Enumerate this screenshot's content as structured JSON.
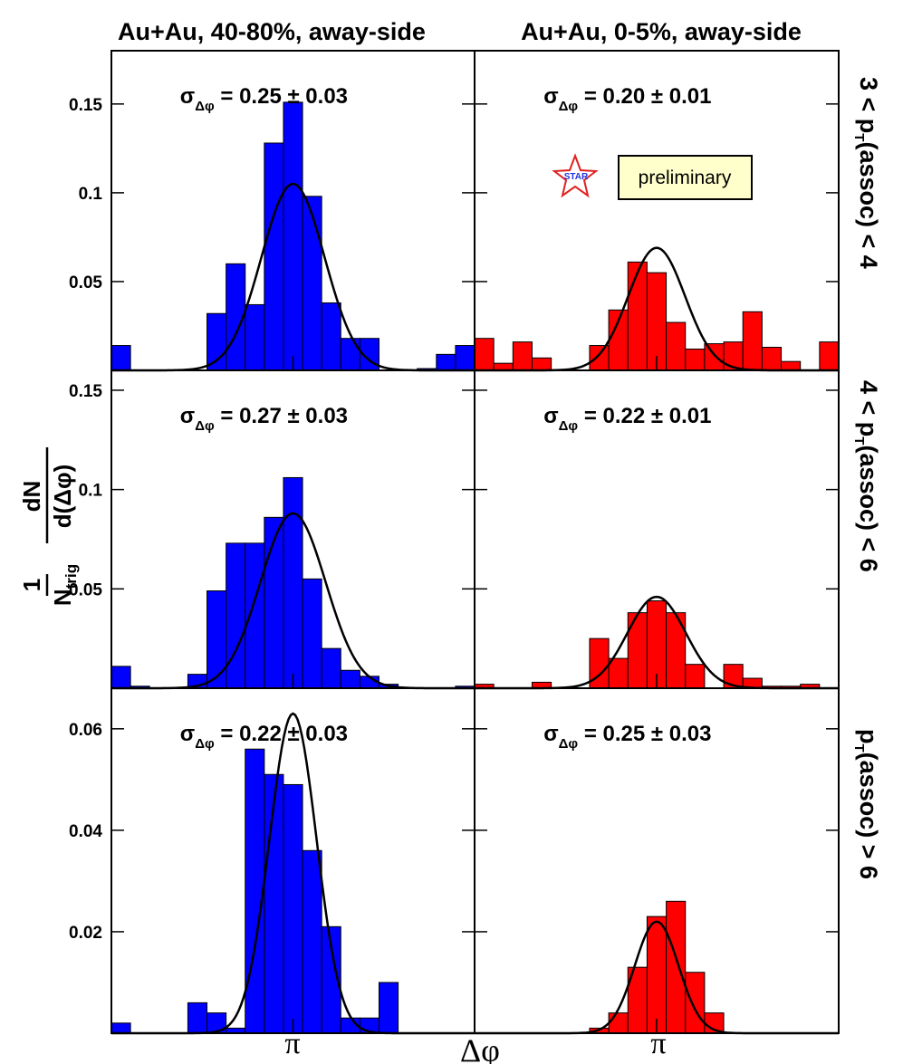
{
  "colors": {
    "blue": "#0000ff",
    "red": "#ff0000",
    "frame": "#000000",
    "prelim_bg": "#ffffcc",
    "star_outline": "#e02020",
    "star_text": "#2233dd"
  },
  "figure": {
    "col_titles": [
      "Au+Au, 40-80%, away-side",
      "Au+Au, 0-5%, away-side"
    ],
    "row_labels": [
      "3 < p",
      "4 < p",
      "p"
    ],
    "row_label_sub": "T",
    "row_label_tails": [
      "(assoc) < 4",
      "(assoc) < 6",
      "(assoc) > 6"
    ],
    "xlabel": "Δφ",
    "xtick_label": "π",
    "ylabel": {
      "num_top": "1",
      "den_top": "N",
      "den_top_sub": "trig",
      "num_bottom": "dN",
      "den_bottom": "d(Δφ)"
    },
    "sigma_symbol": "σ",
    "sigma_sub": "Δφ",
    "pm": "±",
    "star_logo_text": "STAR",
    "preliminary": "preliminary"
  },
  "chart_data": [
    {
      "type": "bar",
      "row": 0,
      "col": 0,
      "color": "blue",
      "ylim": [
        0,
        0.18
      ],
      "yticks": [
        0.05,
        0.1,
        0.15
      ],
      "ytick_labels": [
        "0.05",
        "0.1",
        "0.15"
      ],
      "bins": 19,
      "values": [
        0.014,
        0,
        0,
        0,
        0,
        0.032,
        0.06,
        0.037,
        0.128,
        0.151,
        0.098,
        0.038,
        0.018,
        0.018,
        0,
        0,
        0.001,
        0.009,
        0.014
      ],
      "fit": {
        "mu": 0.5,
        "sigma": 0.087,
        "amp": 0.105
      },
      "sigma_value": "0.25",
      "sigma_err": "0.03"
    },
    {
      "type": "bar",
      "row": 0,
      "col": 1,
      "color": "red",
      "ylim": [
        0,
        0.18
      ],
      "yticks": [
        0.05,
        0.1,
        0.15
      ],
      "ytick_labels": [
        "0.05",
        "0.1",
        "0.15"
      ],
      "bins": 19,
      "values": [
        0.018,
        0.004,
        0.016,
        0.007,
        0,
        0,
        0.014,
        0.034,
        0.061,
        0.055,
        0.027,
        0.012,
        0.015,
        0.016,
        0.033,
        0.013,
        0.005,
        0,
        0.016
      ],
      "fit": {
        "mu": 0.5,
        "sigma": 0.078,
        "amp": 0.069
      },
      "sigma_value": "0.20",
      "sigma_err": "0.01"
    },
    {
      "type": "bar",
      "row": 1,
      "col": 0,
      "color": "blue",
      "ylim": [
        0,
        0.16
      ],
      "yticks": [
        0.05,
        0.1,
        0.15
      ],
      "ytick_labels": [
        "0.05",
        "0.1",
        "0.15"
      ],
      "bins": 19,
      "values": [
        0.011,
        0.001,
        0,
        0,
        0.007,
        0.049,
        0.073,
        0.073,
        0.086,
        0.106,
        0.055,
        0.02,
        0.009,
        0.006,
        0.002,
        0,
        0,
        0,
        0.001
      ],
      "fit": {
        "mu": 0.5,
        "sigma": 0.09,
        "amp": 0.088
      },
      "sigma_value": "0.27",
      "sigma_err": "0.03"
    },
    {
      "type": "bar",
      "row": 1,
      "col": 1,
      "color": "red",
      "ylim": [
        0,
        0.16
      ],
      "yticks": [
        0.05,
        0.1,
        0.15
      ],
      "ytick_labels": [
        "0.05",
        "0.1",
        "0.15"
      ],
      "bins": 19,
      "values": [
        0.002,
        0,
        0,
        0.003,
        0,
        0,
        0.025,
        0.015,
        0.038,
        0.044,
        0.038,
        0.012,
        0,
        0.012,
        0.005,
        0.001,
        0.001,
        0.002,
        0
      ],
      "fit": {
        "mu": 0.5,
        "sigma": 0.08,
        "amp": 0.046
      },
      "sigma_value": "0.22",
      "sigma_err": "0.01"
    },
    {
      "type": "bar",
      "row": 2,
      "col": 0,
      "color": "blue",
      "ylim": [
        0,
        0.068
      ],
      "yticks": [
        0.02,
        0.04,
        0.06
      ],
      "ytick_labels": [
        "0.02",
        "0.04",
        "0.06"
      ],
      "bins": 19,
      "values": [
        0.002,
        0,
        0,
        0,
        0.006,
        0.004,
        0.001,
        0.056,
        0.051,
        0.049,
        0.036,
        0.021,
        0.003,
        0.003,
        0.01,
        0,
        0,
        0,
        0
      ],
      "fit": {
        "mu": 0.5,
        "sigma": 0.065,
        "amp": 0.063
      },
      "sigma_value": "0.22",
      "sigma_err": "0.03"
    },
    {
      "type": "bar",
      "row": 2,
      "col": 1,
      "color": "red",
      "ylim": [
        0,
        0.068
      ],
      "yticks": [
        0.02,
        0.04,
        0.06
      ],
      "ytick_labels": [
        "0.02",
        "0.04",
        "0.06"
      ],
      "bins": 19,
      "values": [
        0,
        0,
        0,
        0,
        0,
        0,
        0.001,
        0.004,
        0.013,
        0.023,
        0.026,
        0.012,
        0.004,
        0,
        0,
        0,
        0,
        0,
        0
      ],
      "fit": {
        "mu": 0.5,
        "sigma": 0.06,
        "amp": 0.022
      },
      "sigma_value": "0.25",
      "sigma_err": "0.03"
    }
  ]
}
